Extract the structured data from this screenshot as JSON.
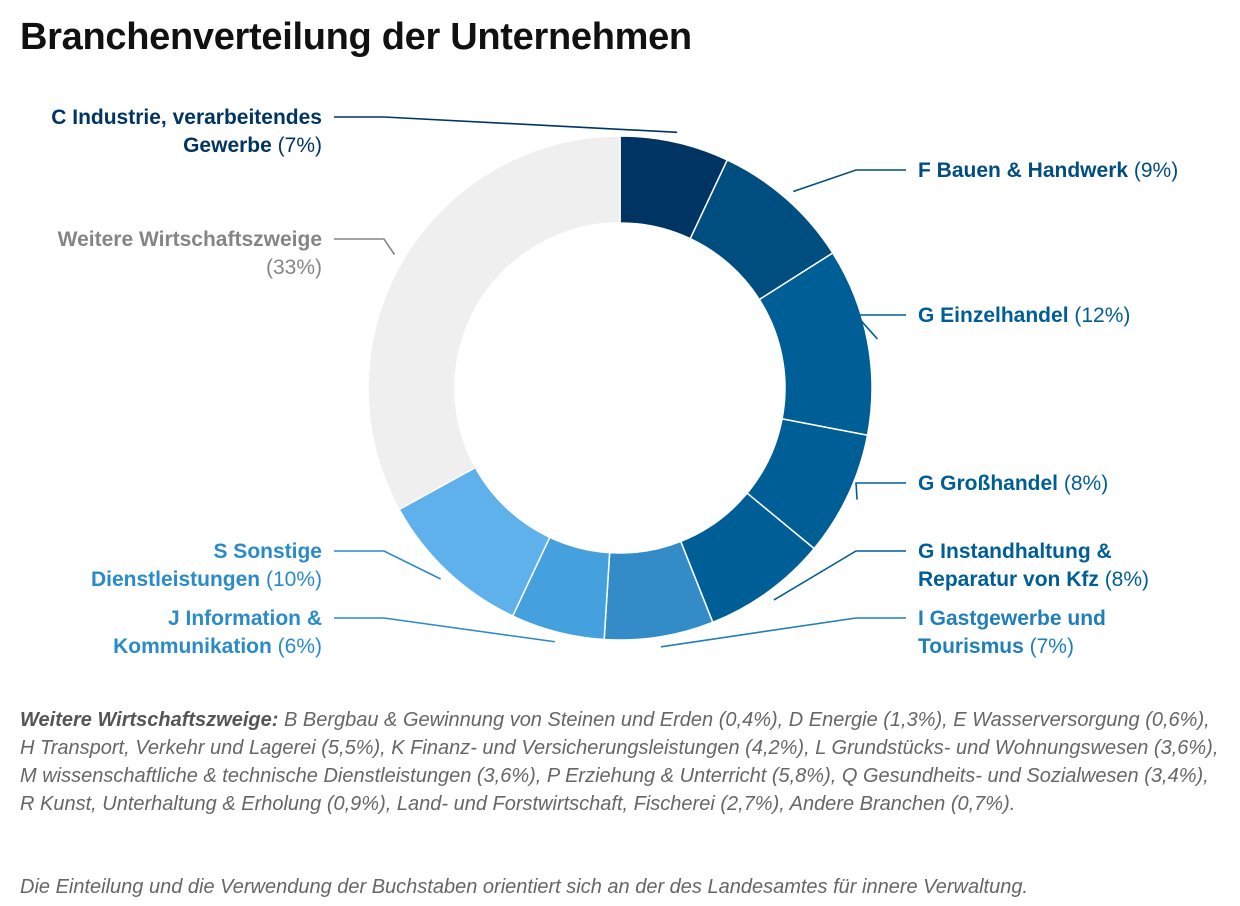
{
  "title": "Branchenverteilung der Unternehmen",
  "chart_data": {
    "type": "pie",
    "variant": "donut",
    "title": "Branchenverteilung der Unternehmen",
    "unit": "%",
    "slices": [
      {
        "label": "C Industrie, verarbeitendes Gewerbe",
        "label_lines": [
          "C Industrie, verarbeitendes",
          "Gewerbe"
        ],
        "value": 7,
        "value_text": "(7%)",
        "color": "#003563",
        "label_color": "#003563",
        "side": "left"
      },
      {
        "label": "F Bauen & Handwerk",
        "label_lines": [
          "F Bauen & Handwerk"
        ],
        "value": 9,
        "value_text": "(9%)",
        "color": "#004d80",
        "label_color": "#004d80",
        "side": "right"
      },
      {
        "label": "G Einzelhandel",
        "label_lines": [
          "G Einzelhandel"
        ],
        "value": 12,
        "value_text": "(12%)",
        "color": "#005e96",
        "label_color": "#005e96",
        "side": "right"
      },
      {
        "label": "G Großhandel",
        "label_lines": [
          "G Großhandel"
        ],
        "value": 8,
        "value_text": "(8%)",
        "color": "#005e96",
        "label_color": "#005e96",
        "side": "right"
      },
      {
        "label": "G Instandhaltung & Reparatur von Kfz",
        "label_lines": [
          "G Instandhaltung &",
          "Reparatur von Kfz"
        ],
        "value": 8,
        "value_text": "(8%)",
        "color": "#005e96",
        "label_color": "#005e96",
        "side": "right"
      },
      {
        "label": "I Gastgewerbe und Tourismus",
        "label_lines": [
          "I Gastgewerbe und",
          "Tourismus"
        ],
        "value": 7,
        "value_text": "(7%)",
        "color": "#338cc8",
        "label_color": "#1f7fba",
        "side": "right"
      },
      {
        "label": "J Information & Kommunikation",
        "label_lines": [
          "J Information &",
          "Kommunikation"
        ],
        "value": 6,
        "value_text": "(6%)",
        "color": "#44a1dd",
        "label_color": "#2a8bc9",
        "side": "left"
      },
      {
        "label": "S Sonstige Dienstleistungen",
        "label_lines": [
          "S Sonstige",
          "Dienstleistungen"
        ],
        "value": 10,
        "value_text": "(10%)",
        "color": "#5fb1ec",
        "label_color": "#2a8bc9",
        "side": "left"
      },
      {
        "label": "Weitere Wirtschaftszweige",
        "label_lines": [
          "Weitere Wirtschaftszweige"
        ],
        "value": 33,
        "value_text": "(33%)",
        "color": "#efefef",
        "label_color": "#858585",
        "side": "left"
      }
    ]
  },
  "footnote": {
    "label": "Weitere Wirtschaftszweige:",
    "text": "B Bergbau & Gewinnung von Steinen und Erden (0,4%), D Energie (1,3%), E Wasserversorgung (0,6%), H Transport, Verkehr und Lagerei (5,5%), K Finanz- und Versicherungsleistungen (4,2%), L Grundstücks- und Wohnungswesen (3,6%), M wissenschaftliche & technische Dienstleistungen (3,6%), P Erziehung & Unterricht (5,8%), Q Gesundheits- und Sozialwesen (3,4%), R Kunst, Unterhaltung & Erholung (0,9%), Land- und Forstwirtschaft, Fischerei (2,7%), Andere Branchen (0,7%).",
    "source": "Die Einteilung und die Verwendung der Buchstaben orientiert sich an der des Landesamtes für innere Verwaltung."
  }
}
